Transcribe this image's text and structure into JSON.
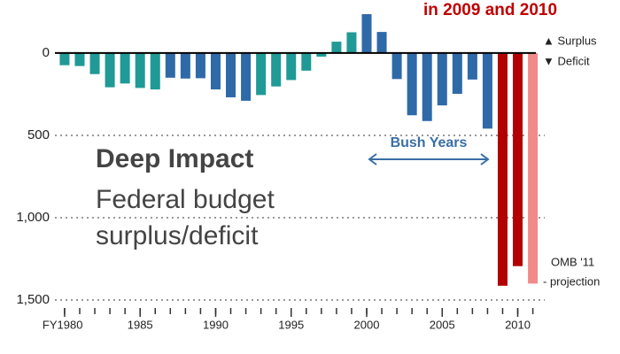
{
  "chart_data": {
    "type": "bar",
    "title": "in 2009 and 2010",
    "heading": "Deep Impact",
    "subtitle_lines": [
      "Federal budget",
      "surplus/deficit"
    ],
    "legend": [
      "▲ Surplus",
      "▼ Deficit"
    ],
    "annotations": {
      "bush": "Bush Years",
      "projection": [
        "OMB '11",
        "- projection"
      ]
    },
    "x": [
      1980,
      1981,
      1982,
      1983,
      1984,
      1985,
      1986,
      1987,
      1988,
      1989,
      1990,
      1991,
      1992,
      1993,
      1994,
      1995,
      1996,
      1997,
      1998,
      1999,
      2000,
      2001,
      2002,
      2003,
      2004,
      2005,
      2006,
      2007,
      2008,
      2009,
      2010,
      2011
    ],
    "values": [
      74,
      79,
      128,
      208,
      185,
      212,
      221,
      150,
      155,
      153,
      221,
      269,
      290,
      255,
      203,
      164,
      107,
      22,
      -69,
      -126,
      -236,
      -128,
      158,
      378,
      413,
      318,
      248,
      161,
      459,
      1413,
      1294,
      1400
    ],
    "colors": [
      "#1f9a96",
      "#1f9a96",
      "#1f9a96",
      "#1f9a96",
      "#1f9a96",
      "#1f9a96",
      "#1f9a96",
      "#2f6aa8",
      "#2f6aa8",
      "#2f6aa8",
      "#2f6aa8",
      "#2f6aa8",
      "#2f6aa8",
      "#1f9a96",
      "#1f9a96",
      "#1f9a96",
      "#1f9a96",
      "#1f9a96",
      "#1f9a96",
      "#1f9a96",
      "#2f6aa8",
      "#2f6aa8",
      "#2f6aa8",
      "#2f6aa8",
      "#2f6aa8",
      "#2f6aa8",
      "#2f6aa8",
      "#2f6aa8",
      "#2f6aa8",
      "#b30000",
      "#b30000",
      "#f28a8a"
    ],
    "xlim": [
      1979.3,
      2011.2
    ],
    "xticks": [
      {
        "value": 1980,
        "label": "FY1980"
      },
      1985,
      1990,
      1995,
      2000,
      2005,
      2010
    ],
    "ylim": [
      -322,
      1532
    ],
    "y_inverted": true,
    "yticks": [
      0,
      500,
      {
        "value": 1000,
        "label": "1,000"
      },
      {
        "value": 1500,
        "label": "1,500"
      }
    ],
    "grid": true
  }
}
